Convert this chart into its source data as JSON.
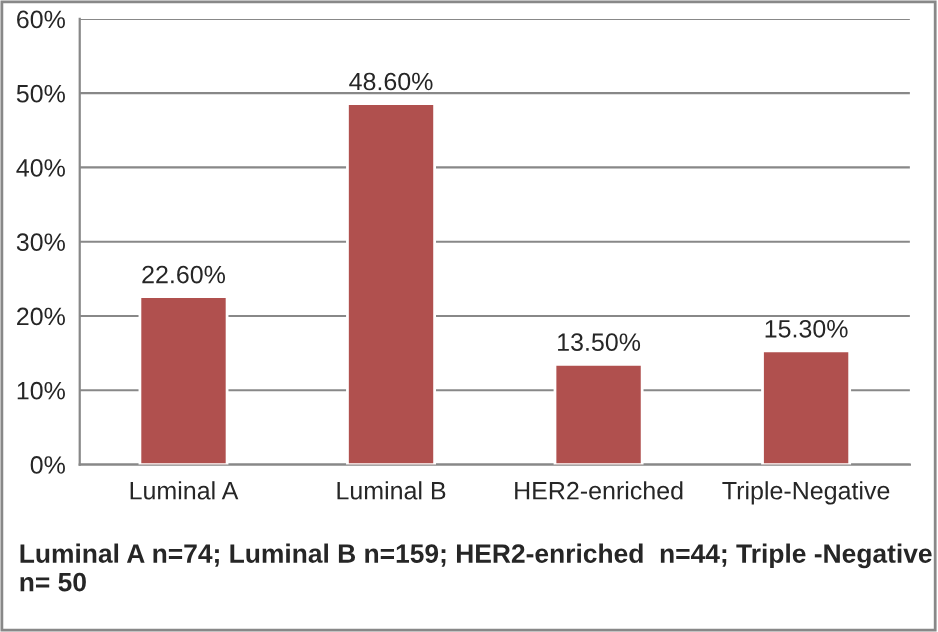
{
  "chart_data": {
    "type": "bar",
    "categories": [
      "Luminal A",
      "Luminal B",
      "HER2-enriched",
      "Triple-Negative"
    ],
    "values": [
      22.6,
      48.6,
      13.5,
      15.3
    ],
    "value_labels": [
      "22.60%",
      "48.60%",
      "13.50%",
      "15.30%"
    ],
    "color": "#b0504e",
    "ylim": [
      0,
      60
    ],
    "yticks": [
      {
        "value": 0,
        "label": "0%"
      },
      {
        "value": 10,
        "label": "10%"
      },
      {
        "value": 20,
        "label": "20%"
      },
      {
        "value": 30,
        "label": "30%"
      },
      {
        "value": 40,
        "label": "40%"
      },
      {
        "value": 50,
        "label": "50%"
      },
      {
        "value": 60,
        "label": "60%"
      }
    ],
    "grid": "y",
    "annotations": [
      "Luminal A n=74; Luminal B n=159; HER2-enriched  n=44; Triple -Negative n= 50"
    ]
  }
}
